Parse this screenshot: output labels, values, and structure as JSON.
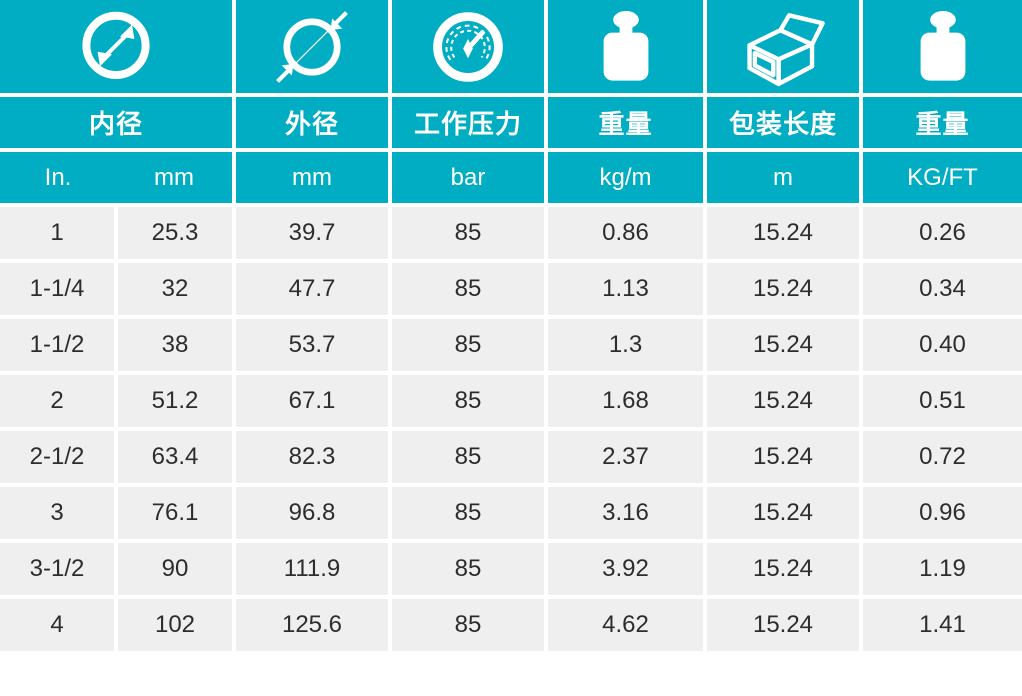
{
  "colors": {
    "accent": "#00adc2",
    "header_text": "#ffffff",
    "row_background": "#efefef",
    "data_text": "#2d2d2d",
    "page_background": "#ffffff"
  },
  "table": {
    "column_groups": [
      {
        "icon": "inner-diameter-icon",
        "label": "内径",
        "units": [
          "In.",
          "mm"
        ]
      },
      {
        "icon": "outer-diameter-icon",
        "label": "外径",
        "units": [
          "mm"
        ]
      },
      {
        "icon": "pressure-gauge-icon",
        "label": "工作压力",
        "units": [
          "bar"
        ]
      },
      {
        "icon": "weight-icon",
        "label": "重量",
        "units": [
          "kg/m"
        ]
      },
      {
        "icon": "package-box-icon",
        "label": "包装长度",
        "units": [
          "m"
        ]
      },
      {
        "icon": "weight-icon",
        "label": "重量",
        "units": [
          "KG/FT"
        ]
      }
    ],
    "rows": [
      [
        "1",
        "25.3",
        "39.7",
        "85",
        "0.86",
        "15.24",
        "0.26"
      ],
      [
        "1-1/4",
        "32",
        "47.7",
        "85",
        "1.13",
        "15.24",
        "0.34"
      ],
      [
        "1-1/2",
        "38",
        "53.7",
        "85",
        "1.3",
        "15.24",
        "0.40"
      ],
      [
        "2",
        "51.2",
        "67.1",
        "85",
        "1.68",
        "15.24",
        "0.51"
      ],
      [
        "2-1/2",
        "63.4",
        "82.3",
        "85",
        "2.37",
        "15.24",
        "0.72"
      ],
      [
        "3",
        "76.1",
        "96.8",
        "85",
        "3.16",
        "15.24",
        "0.96"
      ],
      [
        "3-1/2",
        "90",
        "111.9",
        "85",
        "3.92",
        "15.24",
        "1.19"
      ],
      [
        "4",
        "102",
        "125.6",
        "85",
        "4.62",
        "15.24",
        "1.41"
      ]
    ]
  },
  "chart_data": {
    "type": "table",
    "title": "",
    "columns": [
      "内径 In.",
      "内径 mm",
      "外径 mm",
      "工作压力 bar",
      "重量 kg/m",
      "包装长度 m",
      "重量 KG/FT"
    ],
    "rows": [
      [
        "1",
        "25.3",
        "39.7",
        "85",
        "0.86",
        "15.24",
        "0.26"
      ],
      [
        "1-1/4",
        "32",
        "47.7",
        "85",
        "1.13",
        "15.24",
        "0.34"
      ],
      [
        "1-1/2",
        "38",
        "53.7",
        "85",
        "1.3",
        "15.24",
        "0.40"
      ],
      [
        "2",
        "51.2",
        "67.1",
        "85",
        "1.68",
        "15.24",
        "0.51"
      ],
      [
        "2-1/2",
        "63.4",
        "82.3",
        "85",
        "2.37",
        "15.24",
        "0.72"
      ],
      [
        "3",
        "76.1",
        "96.8",
        "85",
        "3.16",
        "15.24",
        "0.96"
      ],
      [
        "3-1/2",
        "90",
        "111.9",
        "85",
        "3.92",
        "15.24",
        "1.19"
      ],
      [
        "4",
        "102",
        "125.6",
        "85",
        "4.62",
        "15.24",
        "1.41"
      ]
    ]
  }
}
